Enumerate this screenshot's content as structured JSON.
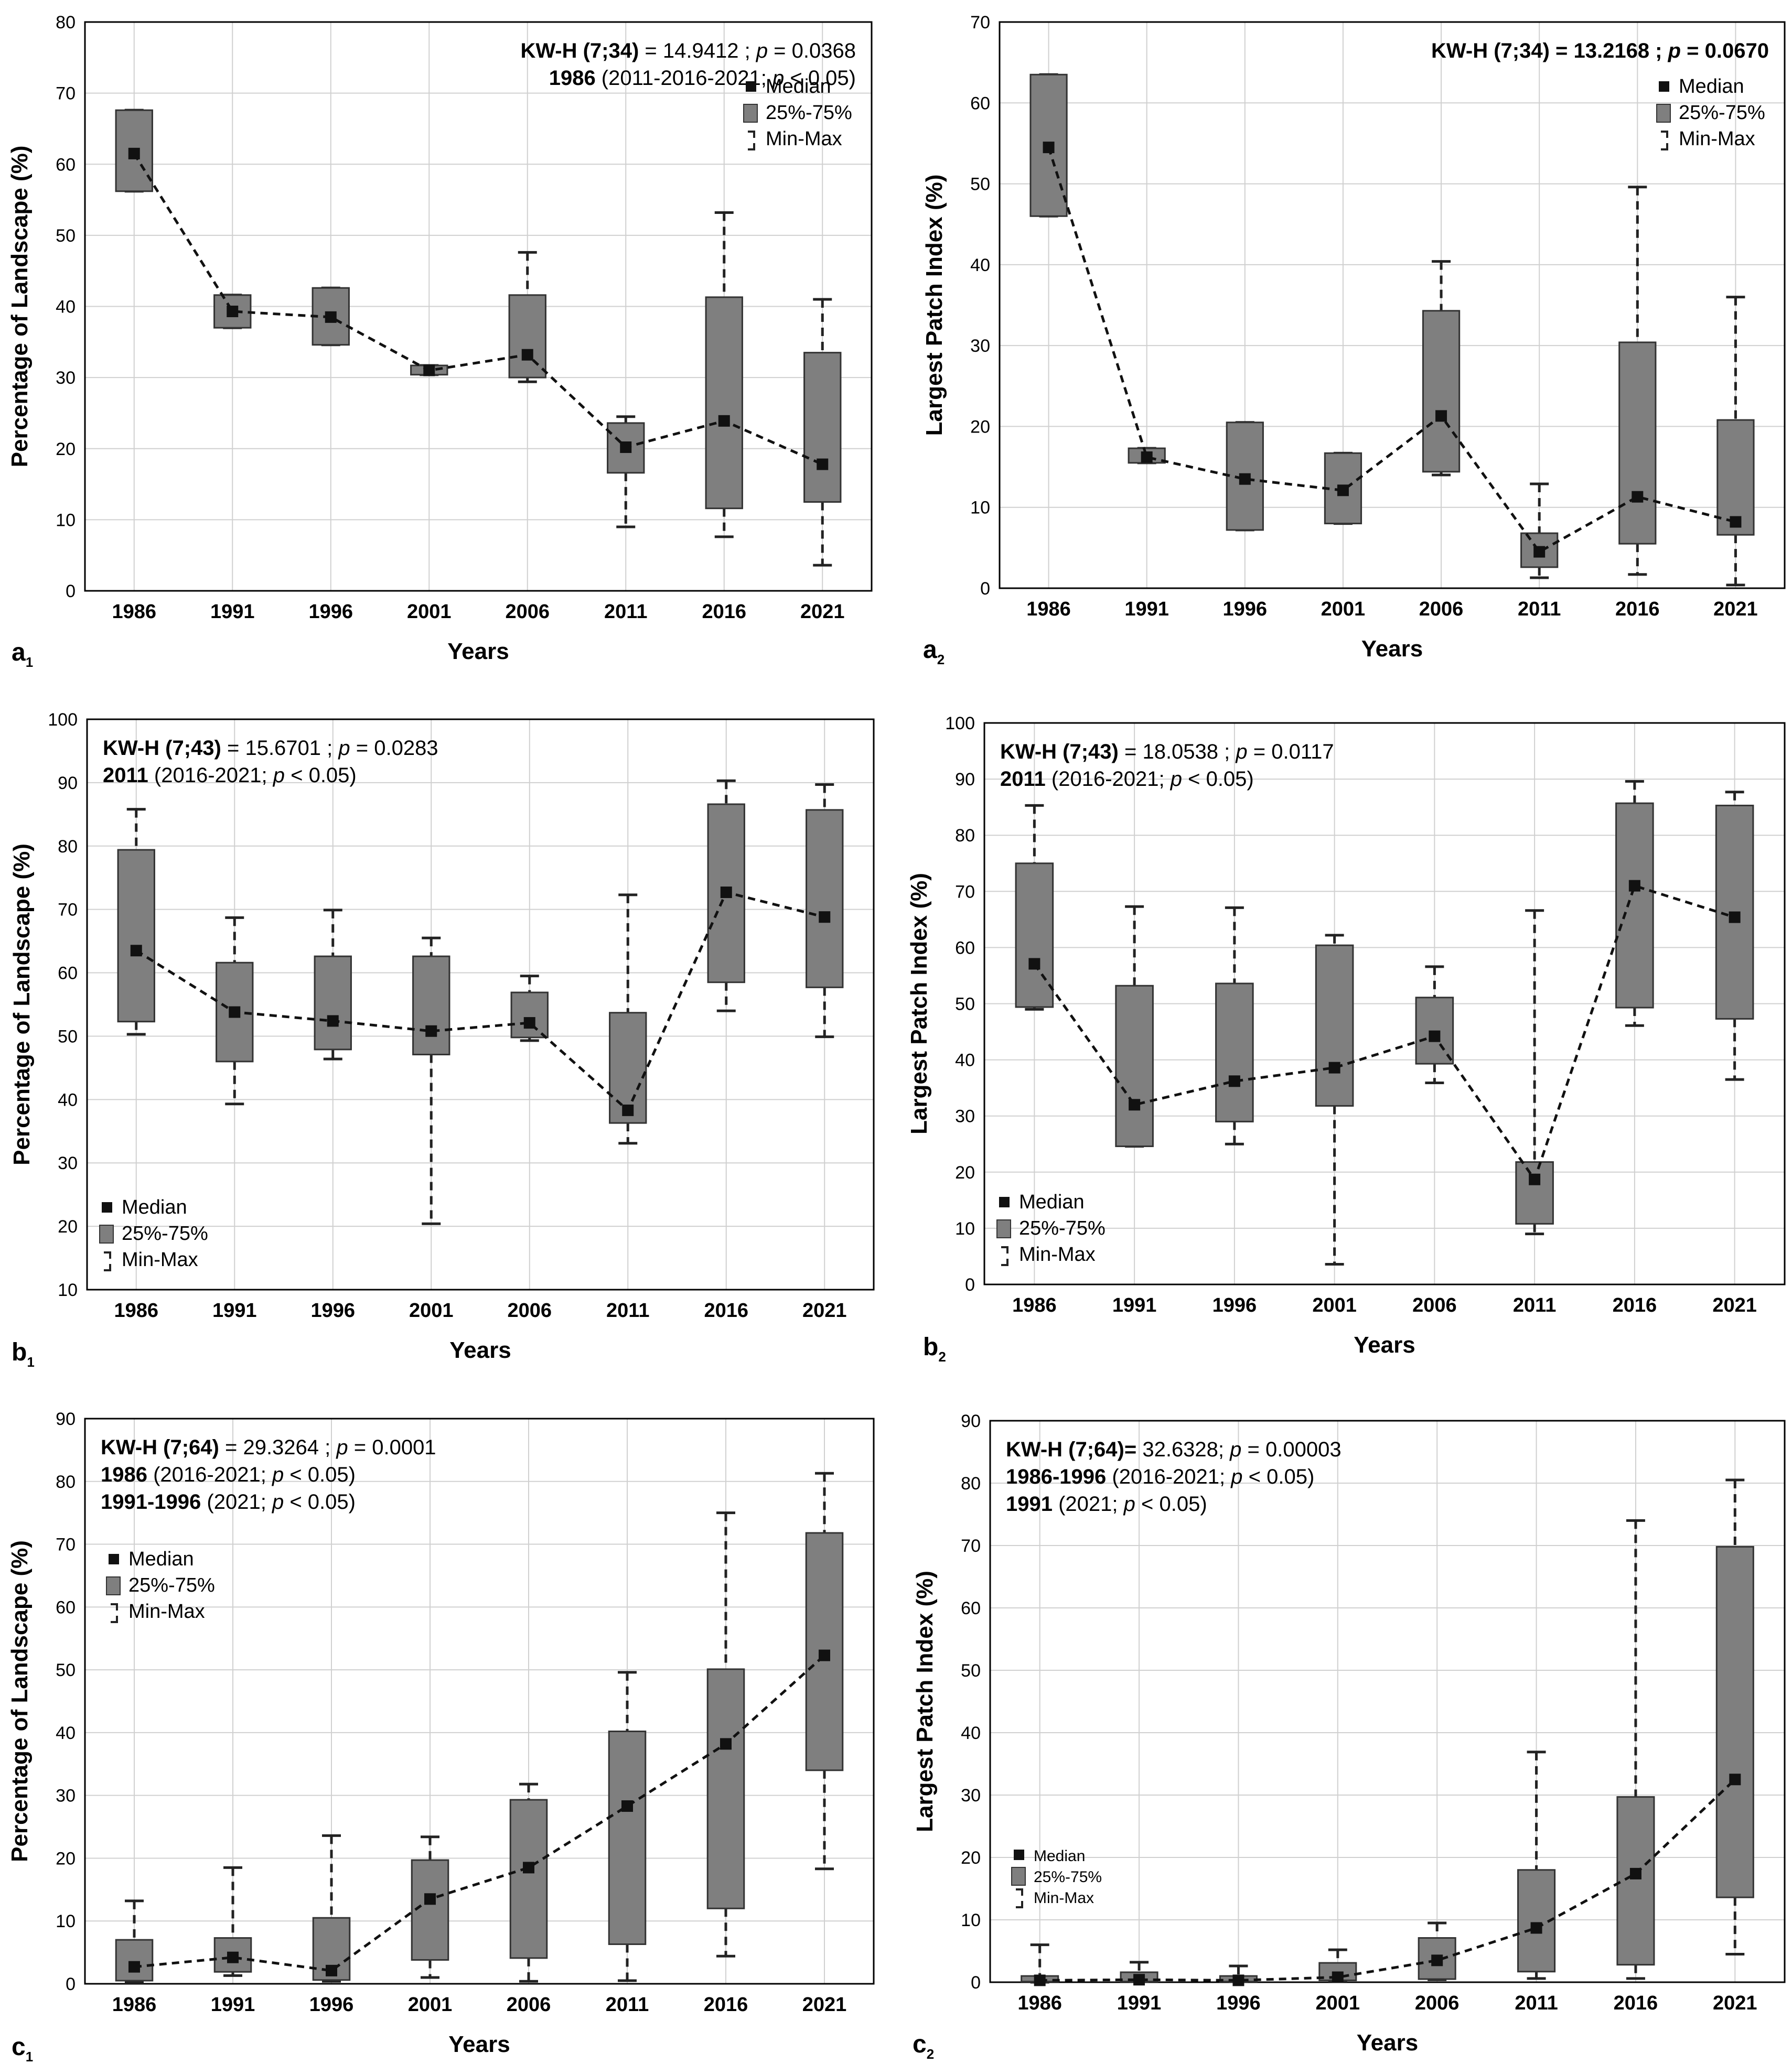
{
  "chart_data": [
    {
      "id": "a1",
      "panel_label": "a",
      "panel_sub": "1",
      "type": "box",
      "title": "",
      "xlabel": "Years",
      "ylabel": "Percentage of Landscape (%)",
      "ylim": [
        0,
        80
      ],
      "yticks": [
        0,
        10,
        20,
        30,
        40,
        50,
        60,
        70,
        80
      ],
      "categories": [
        "1986",
        "1991",
        "1996",
        "2001",
        "2006",
        "2011",
        "2016",
        "2021"
      ],
      "median": [
        61.5,
        39.3,
        38.5,
        31.0,
        33.2,
        20.2,
        23.9,
        17.8
      ],
      "q1": [
        56.2,
        37.0,
        34.6,
        30.4,
        30.0,
        16.6,
        11.6,
        12.5
      ],
      "q3": [
        67.6,
        41.6,
        42.6,
        31.7,
        41.6,
        23.6,
        41.3,
        33.5
      ],
      "min": [
        56.2,
        37.0,
        34.6,
        30.4,
        29.4,
        9.0,
        7.6,
        3.6
      ],
      "max": [
        67.6,
        41.6,
        42.6,
        31.7,
        47.6,
        24.5,
        53.2,
        41.0
      ],
      "stats_position": "top-right",
      "legend_position": "upper-right",
      "stats": [
        {
          "bold": "KW-H (7;34)",
          "text": " = 14.9412 ; ",
          "p_label": "p",
          "p_text": " = 0.0368"
        },
        {
          "bold": "1986",
          "text": " (2011-2016-2021; ",
          "p_label": "p",
          "p_text": " < 0.05)"
        }
      ],
      "legend": [
        "Median",
        "25%-75%",
        "Min-Max"
      ]
    },
    {
      "id": "a2",
      "panel_label": "a",
      "panel_sub": "2",
      "type": "box",
      "title": "",
      "xlabel": "Years",
      "ylabel": "Largest Patch Index (%)",
      "ylim": [
        0,
        70
      ],
      "yticks": [
        0,
        10,
        20,
        30,
        40,
        50,
        60,
        70
      ],
      "categories": [
        "1986",
        "1991",
        "1996",
        "2001",
        "2006",
        "2011",
        "2016",
        "2021"
      ],
      "median": [
        54.5,
        16.2,
        13.5,
        12.1,
        21.3,
        4.5,
        11.3,
        8.2
      ],
      "q1": [
        46.0,
        15.5,
        7.2,
        8.0,
        14.4,
        2.6,
        5.5,
        6.6
      ],
      "q3": [
        63.5,
        17.3,
        20.5,
        16.7,
        34.3,
        6.8,
        30.4,
        20.8
      ],
      "min": [
        46.0,
        15.5,
        7.2,
        8.0,
        14.0,
        1.3,
        1.7,
        0.4
      ],
      "max": [
        63.5,
        17.3,
        20.5,
        16.7,
        40.4,
        12.9,
        49.6,
        36.0
      ],
      "stats_position": "top-right",
      "legend_position": "upper-right",
      "stats": [
        {
          "bold": "KW-H (7;34) = 13.2168 ; ",
          "text": "",
          "p_label": "p",
          "p_text": " = 0.0670",
          "all_bold": true
        }
      ],
      "legend": [
        "Median",
        "25%-75%",
        "Min-Max"
      ]
    },
    {
      "id": "b1",
      "panel_label": "b",
      "panel_sub": "1",
      "type": "box",
      "title": "",
      "xlabel": "Years",
      "ylabel": "Percentage of Landscape (%)",
      "ylim": [
        10,
        100
      ],
      "yticks": [
        10,
        20,
        30,
        40,
        50,
        60,
        70,
        80,
        90,
        100
      ],
      "categories": [
        "1986",
        "1991",
        "1996",
        "2001",
        "2006",
        "2011",
        "2016",
        "2021"
      ],
      "median": [
        63.5,
        53.8,
        52.4,
        50.8,
        52.1,
        38.3,
        72.7,
        68.8
      ],
      "q1": [
        52.3,
        46.0,
        47.9,
        47.1,
        49.8,
        36.3,
        58.5,
        57.7
      ],
      "q3": [
        79.4,
        61.6,
        62.6,
        62.6,
        56.9,
        53.7,
        86.6,
        85.7
      ],
      "min": [
        50.3,
        39.3,
        46.4,
        20.4,
        49.3,
        33.1,
        54.0,
        49.9
      ],
      "max": [
        85.8,
        68.7,
        69.9,
        65.5,
        59.5,
        72.3,
        90.3,
        89.7
      ],
      "stats_position": "top-left",
      "legend_position": "lower-left",
      "stats": [
        {
          "bold": "KW-H (7;43)",
          "text": " = 15.6701 ; ",
          "p_label": "p",
          "p_text": " = 0.0283"
        },
        {
          "bold": "2011",
          "text": " (2016-2021; ",
          "p_label": "p",
          "p_text": " < 0.05)"
        }
      ],
      "legend": [
        "Median",
        "25%-75%",
        "Min-Max"
      ]
    },
    {
      "id": "b2",
      "panel_label": "b",
      "panel_sub": "2",
      "type": "box",
      "title": "",
      "xlabel": "Years",
      "ylabel": "Largest Patch Index (%)",
      "ylim": [
        0,
        100
      ],
      "yticks": [
        0,
        10,
        20,
        30,
        40,
        50,
        60,
        70,
        80,
        90,
        100
      ],
      "categories": [
        "1986",
        "1991",
        "1996",
        "2001",
        "2006",
        "2011",
        "2016",
        "2021"
      ],
      "median": [
        57.1,
        32.0,
        36.2,
        38.6,
        44.2,
        18.7,
        71.0,
        65.4
      ],
      "q1": [
        49.4,
        24.6,
        29.0,
        31.8,
        39.3,
        10.8,
        49.3,
        47.3
      ],
      "q3": [
        75.0,
        53.2,
        53.6,
        60.4,
        51.1,
        21.8,
        85.7,
        85.3
      ],
      "min": [
        49.0,
        24.6,
        25.0,
        3.6,
        35.9,
        9.0,
        46.1,
        36.5
      ],
      "max": [
        85.3,
        67.3,
        67.1,
        62.2,
        56.6,
        66.6,
        89.6,
        87.7
      ],
      "stats_position": "top-left",
      "legend_position": "lower-left",
      "stats": [
        {
          "bold": "KW-H (7;43)",
          "text": " = 18.0538 ; ",
          "p_label": "p",
          "p_text": " = 0.0117"
        },
        {
          "bold": "2011",
          "text": " (2016-2021; ",
          "p_label": "p",
          "p_text": " < 0.05)"
        }
      ],
      "legend": [
        "Median",
        "25%-75%",
        "Min-Max"
      ]
    },
    {
      "id": "c1",
      "panel_label": "c",
      "panel_sub": "1",
      "type": "box",
      "title": "",
      "xlabel": "Years",
      "ylabel": "Percentage of Landscape (%)",
      "ylim": [
        0,
        90
      ],
      "yticks": [
        0,
        10,
        20,
        30,
        40,
        50,
        60,
        70,
        80,
        90
      ],
      "categories": [
        "1986",
        "1991",
        "1996",
        "2001",
        "2006",
        "2011",
        "2016",
        "2021"
      ],
      "median": [
        2.7,
        4.2,
        2.1,
        13.5,
        18.5,
        28.3,
        38.2,
        52.3
      ],
      "q1": [
        0.5,
        1.9,
        0.6,
        3.8,
        4.1,
        6.3,
        12.0,
        34.0
      ],
      "q3": [
        7.0,
        7.3,
        10.5,
        19.7,
        29.3,
        40.2,
        50.1,
        71.8
      ],
      "min": [
        0.2,
        1.3,
        0.4,
        1.0,
        0.4,
        0.5,
        4.4,
        18.3
      ],
      "max": [
        13.2,
        18.5,
        23.6,
        23.4,
        31.8,
        49.6,
        75.0,
        81.3
      ],
      "stats_position": "top-left",
      "legend_position": "upper-left",
      "stats": [
        {
          "bold": "KW-H (7;64)",
          "text": " = 29.3264 ; ",
          "p_label": "p",
          "p_text": " = 0.0001"
        },
        {
          "bold": "1986",
          "text": " (2016-2021; ",
          "p_label": "p",
          "p_text": " < 0.05)"
        },
        {
          "bold": "1991-1996",
          "text": " (2021; ",
          "p_label": "p",
          "p_text": " < 0.05)"
        }
      ],
      "legend": [
        "Median",
        "25%-75%",
        "Min-Max"
      ]
    },
    {
      "id": "c2",
      "panel_label": "c",
      "panel_sub": "2",
      "type": "box",
      "title": "",
      "xlabel": "Years",
      "ylabel": "Largest Patch Index (%)",
      "ylim": [
        0,
        90
      ],
      "yticks": [
        0,
        10,
        20,
        30,
        40,
        50,
        60,
        70,
        80,
        90
      ],
      "categories": [
        "1986",
        "1991",
        "1996",
        "2001",
        "2006",
        "2011",
        "2016",
        "2021"
      ],
      "median": [
        0.3,
        0.4,
        0.3,
        0.8,
        3.5,
        8.7,
        17.4,
        32.5
      ],
      "q1": [
        0.1,
        0.1,
        0.1,
        0.3,
        0.5,
        1.7,
        2.8,
        13.6
      ],
      "q3": [
        1.0,
        1.6,
        1.0,
        3.1,
        7.1,
        18.0,
        29.7,
        69.8
      ],
      "min": [
        0.0,
        0.1,
        0.1,
        0.2,
        0.4,
        0.6,
        0.6,
        4.5
      ],
      "max": [
        6.0,
        3.2,
        2.6,
        5.2,
        9.5,
        36.9,
        74.0,
        80.5
      ],
      "stats_position": "top-left",
      "legend_position": "mid-left",
      "stats": [
        {
          "bold": "KW-H (7;64)=",
          "text": " 32.6328; ",
          "p_label": "p",
          "p_text": " = 0.00003"
        },
        {
          "bold": "1986-1996",
          "text": " (2016-2021; ",
          "p_label": "p",
          "p_text": " < 0.05)"
        },
        {
          "bold": "1991",
          "text": " (2021; ",
          "p_label": "p",
          "p_text": " < 0.05)"
        }
      ],
      "legend": [
        "Median",
        "25%-75%",
        "Min-Max"
      ]
    }
  ]
}
